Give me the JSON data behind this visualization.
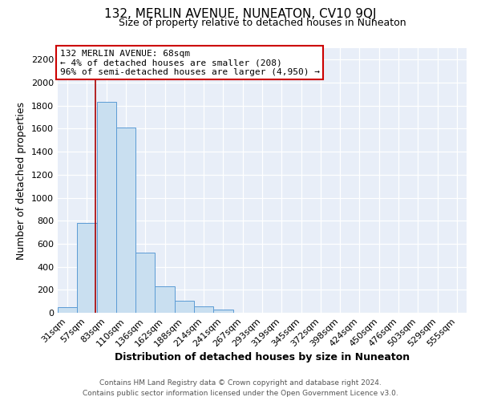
{
  "title": "132, MERLIN AVENUE, NUNEATON, CV10 9QJ",
  "subtitle": "Size of property relative to detached houses in Nuneaton",
  "xlabel": "Distribution of detached houses by size in Nuneaton",
  "ylabel": "Number of detached properties",
  "bar_labels": [
    "31sqm",
    "57sqm",
    "83sqm",
    "110sqm",
    "136sqm",
    "162sqm",
    "188sqm",
    "214sqm",
    "241sqm",
    "267sqm",
    "293sqm",
    "319sqm",
    "345sqm",
    "372sqm",
    "398sqm",
    "424sqm",
    "450sqm",
    "476sqm",
    "503sqm",
    "529sqm",
    "555sqm"
  ],
  "bar_values": [
    50,
    780,
    1830,
    1610,
    520,
    230,
    105,
    55,
    25,
    0,
    0,
    0,
    0,
    0,
    0,
    0,
    0,
    0,
    0,
    0,
    0
  ],
  "bar_color": "#c9dff0",
  "bar_edge_color": "#5b9bd5",
  "ylim": [
    0,
    2300
  ],
  "yticks": [
    0,
    200,
    400,
    600,
    800,
    1000,
    1200,
    1400,
    1600,
    1800,
    2000,
    2200
  ],
  "vline_x": 1.42,
  "vline_color": "#aa0000",
  "annotation_title": "132 MERLIN AVENUE: 68sqm",
  "annotation_line1": "← 4% of detached houses are smaller (208)",
  "annotation_line2": "96% of semi-detached houses are larger (4,950) →",
  "annotation_box_color": "#ffffff",
  "annotation_border_color": "#cc0000",
  "footer_line1": "Contains HM Land Registry data © Crown copyright and database right 2024.",
  "footer_line2": "Contains public sector information licensed under the Open Government Licence v3.0.",
  "background_color": "#ffffff",
  "plot_bg_color": "#e8eef8",
  "grid_color": "#ffffff",
  "title_fontsize": 11,
  "subtitle_fontsize": 9,
  "xlabel_fontsize": 9,
  "ylabel_fontsize": 9,
  "tick_fontsize": 8,
  "annot_fontsize": 8,
  "footer_fontsize": 6.5
}
